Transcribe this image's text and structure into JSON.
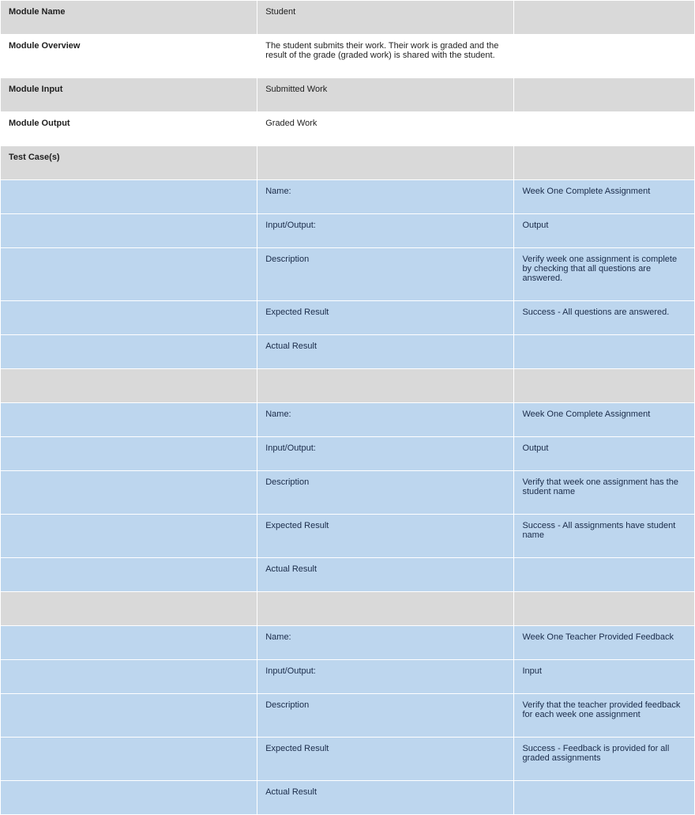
{
  "header": {
    "module_name_label": "Module Name",
    "module_name_value": "Student",
    "module_overview_label": "Module Overview",
    "module_overview_value": "The student submits their work. Their work is graded and the result of the grade (graded work) is shared with the student.",
    "module_input_label": "Module Input",
    "module_input_value": "Submitted Work",
    "module_output_label": "Module Output",
    "module_output_value": "Graded Work",
    "test_cases_label": "Test Case(s)"
  },
  "field_labels": {
    "name": "Name:",
    "input_output": "Input/Output:",
    "description": "Description",
    "expected_result": "Expected Result",
    "actual_result": "Actual Result"
  },
  "test_cases": [
    {
      "name": "Week One Complete Assignment",
      "input_output": "Output",
      "description": "Verify week one assignment is complete by checking that all questions are answered.",
      "expected_result": "Success - All questions are answered.",
      "actual_result": ""
    },
    {
      "name": "Week One Complete Assignment",
      "input_output": "Output",
      "description": "Verify that week one assignment has the student name",
      "expected_result": "Success - All assignments have student name",
      "actual_result": ""
    },
    {
      "name": "Week One Teacher Provided Feedback",
      "input_output": "Input",
      "description": "Verify that the teacher provided feedback for each week one assignment",
      "expected_result": "Success - Feedback is provided for all graded assignments",
      "actual_result": ""
    }
  ],
  "colors": {
    "gray_bg": "#d9d9d9",
    "white_bg": "#ffffff",
    "blue_bg": "#bdd6ee",
    "border": "#ffffff",
    "text_dark": "#1f1f1f",
    "text_blue": "#1a2b49"
  }
}
